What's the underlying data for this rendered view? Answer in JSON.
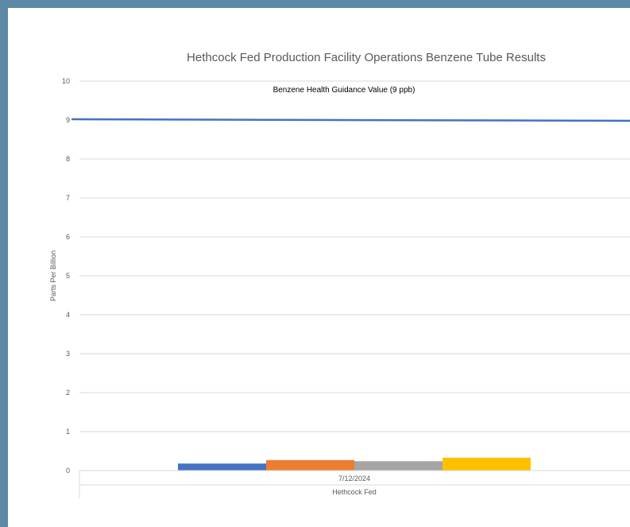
{
  "chart_data": {
    "type": "bar",
    "title": "Hethcock Fed Production Facility Operations Benzene Tube Results",
    "ylabel": "Parts Per Billion",
    "xlabel": "",
    "ylim": [
      0,
      10
    ],
    "yticks": [
      0,
      1,
      2,
      3,
      4,
      5,
      6,
      7,
      8,
      9,
      10
    ],
    "grid": true,
    "categories": [
      {
        "date": "7/12/2024",
        "group": "Hethcock Fed"
      }
    ],
    "series": [
      {
        "values": [
          0.18
        ],
        "color": "#4472c4"
      },
      {
        "values": [
          0.27
        ],
        "color": "#ed7d31"
      },
      {
        "values": [
          0.24
        ],
        "color": "#a5a5a5"
      },
      {
        "values": [
          0.33
        ],
        "color": "#ffc000"
      }
    ],
    "reference_line": {
      "label": "Benzene Health Guidance Value (9 ppb)",
      "value": 9,
      "color": "#4472c4"
    }
  }
}
